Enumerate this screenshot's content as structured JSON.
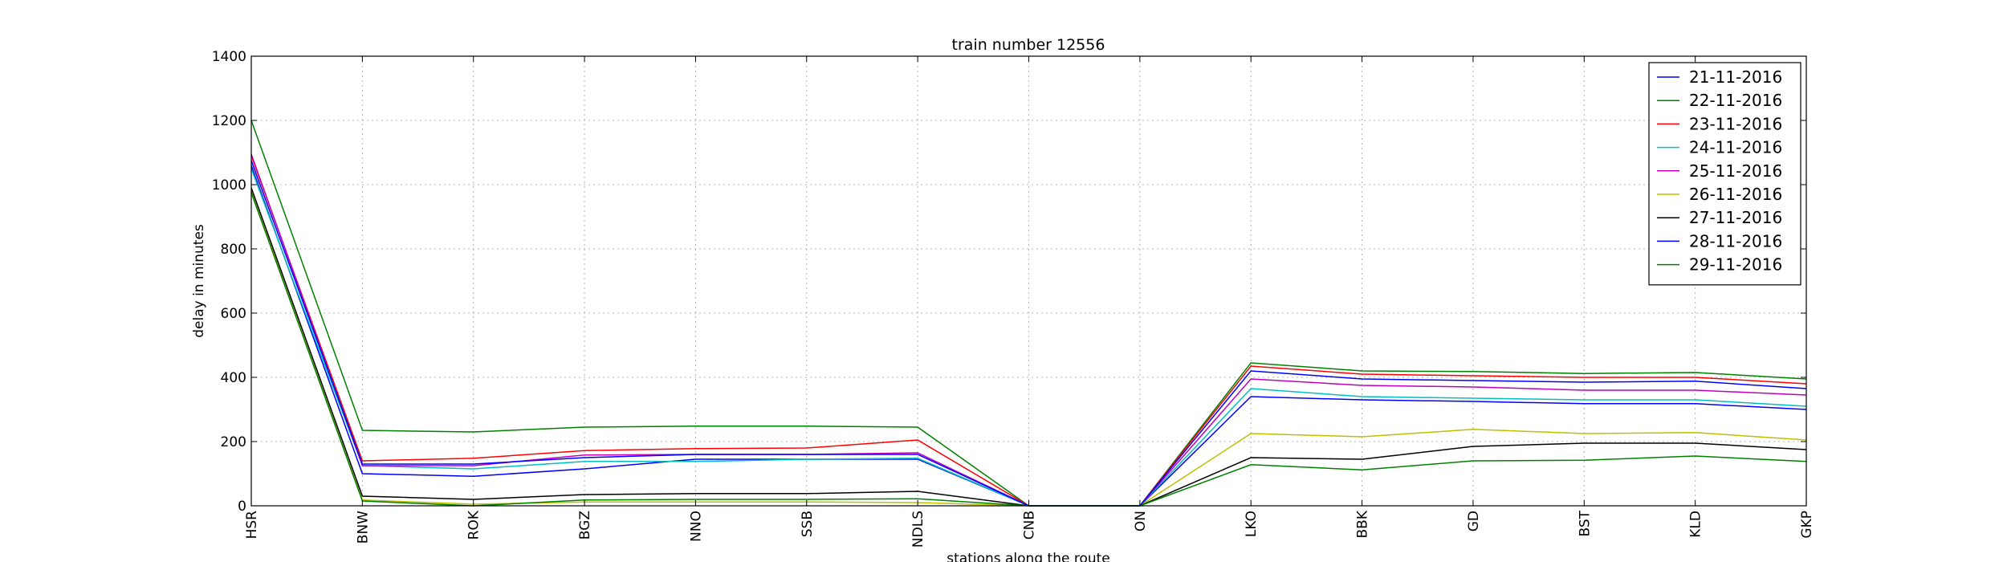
{
  "chart_data": {
    "type": "line",
    "title": "train number 12556",
    "xlabel": "stations along the route",
    "ylabel": "delay in minutes",
    "ylim": [
      0,
      1400
    ],
    "yticks": [
      0,
      200,
      400,
      600,
      800,
      1000,
      1200,
      1400
    ],
    "grid": true,
    "legend_position": "top-right",
    "categories": [
      "HSR",
      "BNW",
      "ROK",
      "BGZ",
      "NNO",
      "SSB",
      "NDLS",
      "CNB",
      "ON",
      "LKO",
      "BBK",
      "GD",
      "BST",
      "KLD",
      "GKP"
    ],
    "series": [
      {
        "name": "21-11-2016",
        "color": "#0000ff",
        "values": [
          1060,
          100,
          92,
          115,
          145,
          145,
          145,
          0,
          0,
          340,
          330,
          325,
          318,
          318,
          300
        ]
      },
      {
        "name": "22-11-2016",
        "color": "#008000",
        "values": [
          1200,
          235,
          230,
          245,
          248,
          248,
          245,
          0,
          0,
          445,
          420,
          418,
          412,
          415,
          395
        ]
      },
      {
        "name": "23-11-2016",
        "color": "#ff0000",
        "values": [
          1090,
          140,
          148,
          172,
          178,
          180,
          205,
          0,
          0,
          435,
          410,
          405,
          400,
          400,
          380
        ]
      },
      {
        "name": "24-11-2016",
        "color": "#00bfbf",
        "values": [
          1050,
          125,
          115,
          138,
          138,
          145,
          148,
          0,
          0,
          365,
          340,
          335,
          330,
          330,
          310
        ]
      },
      {
        "name": "25-11-2016",
        "color": "#bf00bf",
        "values": [
          1095,
          125,
          125,
          158,
          160,
          160,
          165,
          0,
          0,
          395,
          375,
          370,
          360,
          360,
          345
        ]
      },
      {
        "name": "26-11-2016",
        "color": "#bfbf00",
        "values": [
          980,
          18,
          5,
          12,
          12,
          12,
          10,
          0,
          0,
          225,
          215,
          238,
          225,
          228,
          205
        ]
      },
      {
        "name": "27-11-2016",
        "color": "#000000",
        "values": [
          990,
          30,
          20,
          35,
          38,
          38,
          45,
          0,
          0,
          150,
          145,
          185,
          195,
          195,
          175
        ]
      },
      {
        "name": "28-11-2016",
        "color": "#0000ff",
        "values": [
          1075,
          130,
          130,
          150,
          160,
          160,
          160,
          0,
          0,
          420,
          395,
          390,
          385,
          388,
          365
        ]
      },
      {
        "name": "29-11-2016",
        "color": "#008000",
        "values": [
          975,
          15,
          0,
          18,
          20,
          20,
          22,
          0,
          0,
          128,
          112,
          140,
          142,
          155,
          138
        ]
      }
    ]
  }
}
